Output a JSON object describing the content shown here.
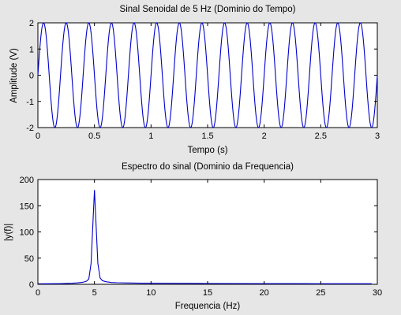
{
  "chart_data": [
    {
      "type": "line",
      "title": "Sinal Senoidal de 5 Hz (Dominio do Tempo)",
      "xlabel": "Tempo (s)",
      "ylabel": "Amplitude (V)",
      "xlim": [
        0,
        3
      ],
      "ylim": [
        -2,
        2
      ],
      "xticks": [
        "0",
        "0.5",
        "1",
        "1.5",
        "2",
        "2.5",
        "3"
      ],
      "yticks": [
        "-2",
        "-1",
        "0",
        "1",
        "2"
      ],
      "grid": false,
      "series": [
        {
          "function": "sine",
          "amplitude": 2,
          "frequency_hz": 5,
          "phase_deg": 0,
          "x_start": 0,
          "x_end": 3,
          "color": "#0000cc"
        }
      ]
    },
    {
      "type": "line",
      "title": "Espectro do sinal (Dominio da Frequencia)",
      "xlabel": "Frequencia (Hz)",
      "ylabel": "|y(f)|",
      "xlim": [
        0,
        30
      ],
      "ylim": [
        0,
        200
      ],
      "xticks": [
        "0",
        "5",
        "10",
        "15",
        "20",
        "25",
        "30"
      ],
      "yticks": [
        "0",
        "50",
        "100",
        "150",
        "200"
      ],
      "grid": false,
      "series": [
        {
          "color": "#0000cc",
          "x": [
            0,
            1,
            2,
            3,
            3.5,
            4,
            4.3,
            4.5,
            4.7,
            4.85,
            5.0,
            5.15,
            5.3,
            5.5,
            5.7,
            6,
            6.5,
            7,
            8,
            9,
            10,
            15,
            20,
            25,
            29.5
          ],
          "y": [
            0.8,
            1,
            1.3,
            2,
            2.8,
            4,
            6,
            10,
            40,
            110,
            180,
            110,
            40,
            12,
            7,
            5,
            3.5,
            3,
            2.5,
            2.2,
            2,
            1.5,
            1.3,
            1.1,
            1
          ]
        }
      ]
    }
  ]
}
